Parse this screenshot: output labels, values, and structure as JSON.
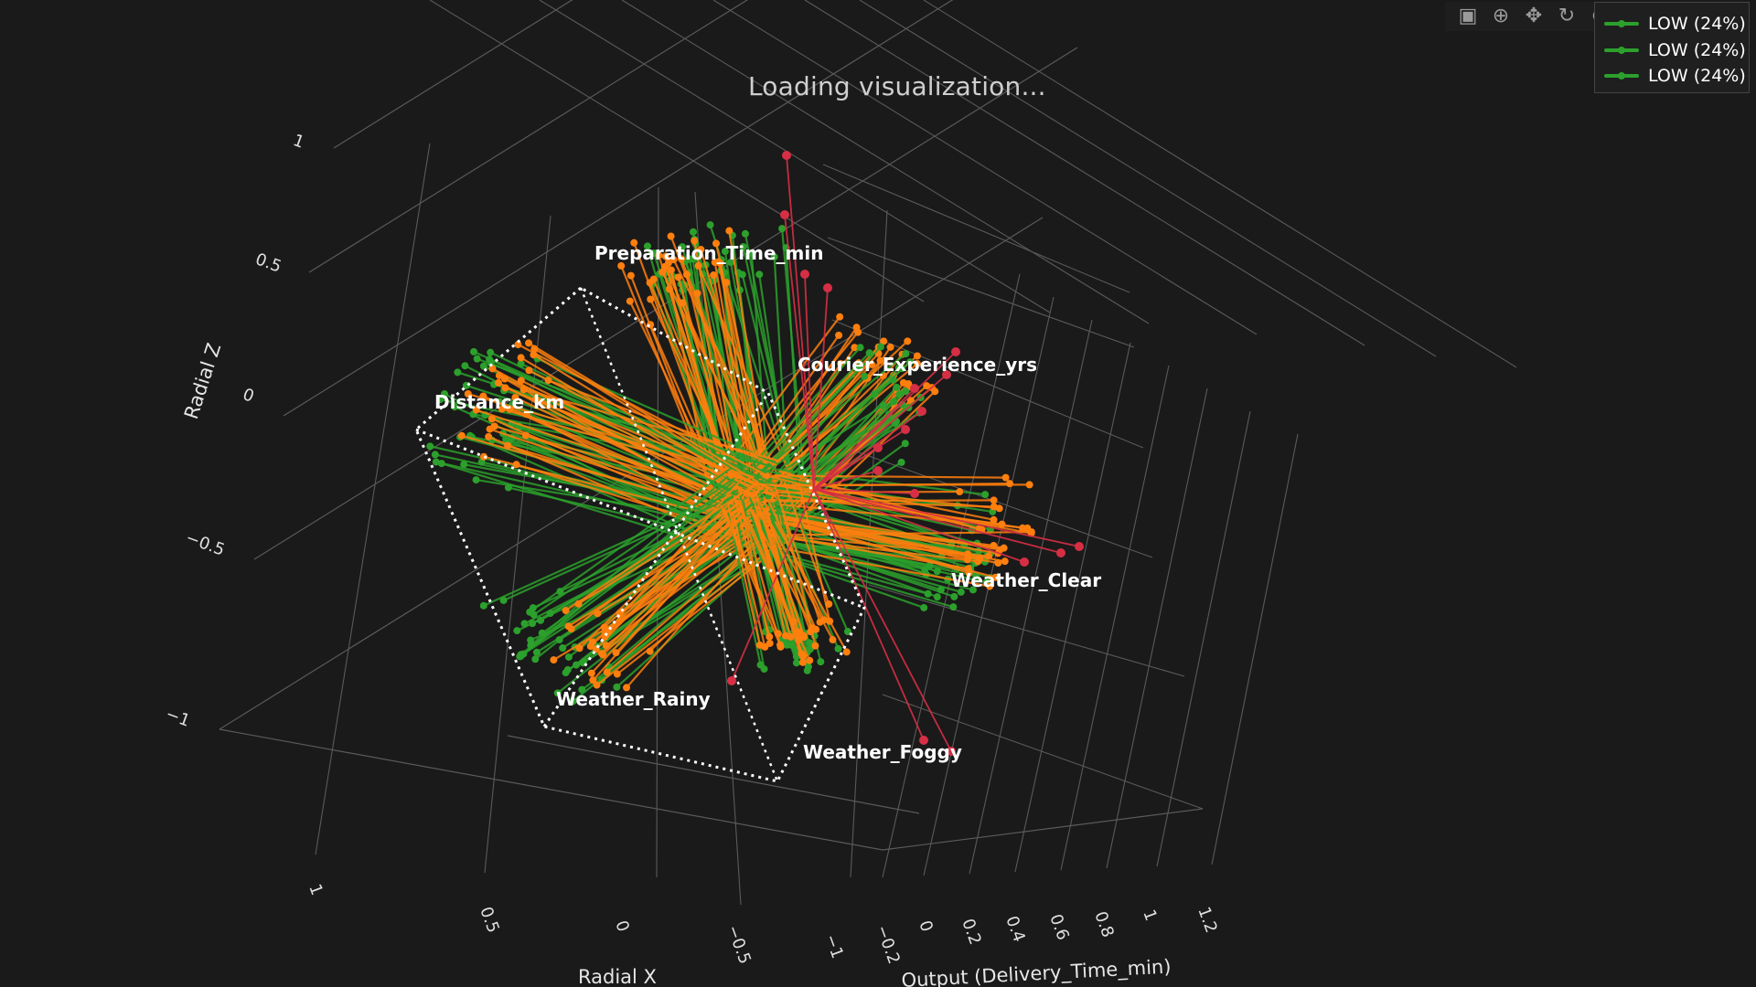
{
  "loading_text": "Loading visualization...",
  "modebar": {
    "icons": [
      "camera-icon",
      "zoom-icon",
      "pan-icon",
      "orbit-rotation-icon",
      "turntable-rotation-icon",
      "home-icon",
      "hover-icon"
    ]
  },
  "legend": {
    "items": [
      {
        "label": "LOW (24%)",
        "color": "#2ca02c"
      },
      {
        "label": "LOW (24%)",
        "color": "#2ca02c"
      },
      {
        "label": "LOW (24%)",
        "color": "#2ca02c"
      }
    ]
  },
  "chart_data": {
    "type": "scatter3d",
    "title": "",
    "colors": {
      "low": "#2ca02c",
      "medium": "#ff7f0e",
      "high": "#d62f45",
      "grid": "#5a5a5a",
      "background": "#1a1a1a"
    },
    "axes": {
      "z": {
        "label": "Radial Z",
        "ticks": [
          "1",
          "0.5",
          "0",
          "−0.5",
          "−1"
        ]
      },
      "x": {
        "label": "Radial X",
        "ticks": [
          "1",
          "0.5",
          "0",
          "−0.5",
          "−1"
        ]
      },
      "y": {
        "label": "Output (Delivery_Time_min)",
        "ticks": [
          "−0.2",
          "0",
          "0.2",
          "0.4",
          "0.6",
          "0.8",
          "1",
          "1.2"
        ]
      }
    },
    "feature_labels": [
      {
        "text": "Preparation_Time_min",
        "angle_deg": 96
      },
      {
        "text": "Courier_Experience_yrs",
        "angle_deg": 45
      },
      {
        "text": "Distance_km",
        "angle_deg": 158
      },
      {
        "text": "Weather_Clear",
        "angle_deg": -18
      },
      {
        "text": "Weather_Rainy",
        "angle_deg": -148
      },
      {
        "text": "Weather_Foggy",
        "angle_deg": -78
      }
    ]
  }
}
